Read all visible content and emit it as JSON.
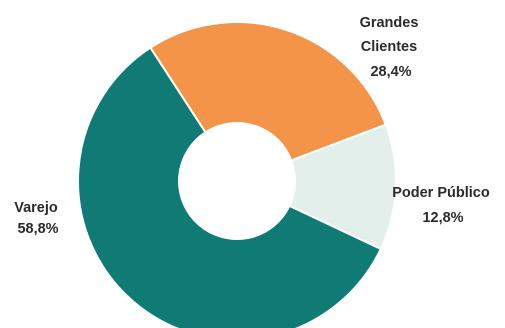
{
  "chart_data": {
    "type": "pie",
    "donut": true,
    "title": "",
    "legend": "none",
    "categories": [
      "Varejo",
      "Grandes Clientes",
      "Poder Público"
    ],
    "series": [
      {
        "values": [
          58.8,
          28.4,
          12.8
        ]
      }
    ],
    "labels": [
      {
        "name_lines": [
          "Varejo"
        ],
        "value": "58,8%"
      },
      {
        "name_lines": [
          "Grandes",
          "Clientes"
        ],
        "value": "28,4%"
      },
      {
        "name_lines": [
          "Poder Público"
        ],
        "value": "12,8%"
      }
    ],
    "colors": [
      "#0f7b74",
      "#f39449",
      "#e3efea"
    ],
    "slice_border_color": "#ffffff"
  }
}
